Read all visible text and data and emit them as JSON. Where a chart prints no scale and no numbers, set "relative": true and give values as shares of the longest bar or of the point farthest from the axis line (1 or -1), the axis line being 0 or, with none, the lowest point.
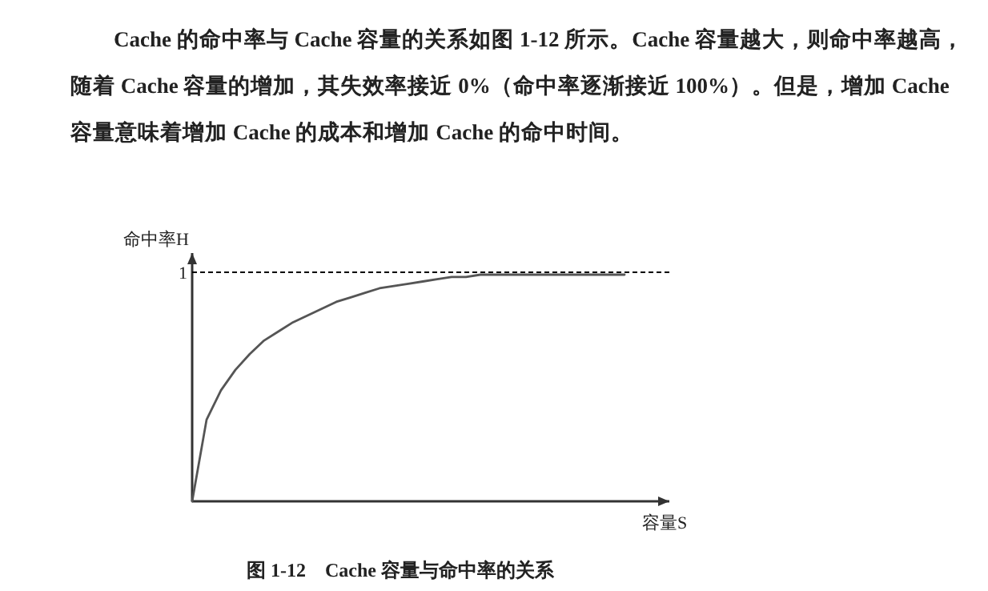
{
  "chart_data": {
    "type": "line",
    "title": "图 1-12　Cache 容量与命中率的关系",
    "xlabel": "容量S",
    "ylabel": "命中率H",
    "annotations": [
      "Cache 的命中率与 Cache 容量的关系如图 1-12 所示。Cache 容量越大，则命中率越高，随着 Cache 容量的增加，其失效率接近 0%（命中率逐渐接近 100%）。但是，增加 Cache 容量意味着增加 Cache 的成本和增加 Cache 的命中时间。"
    ],
    "relative": true,
    "color": "#555555",
    "categories": [
      null,
      null,
      null,
      null,
      null,
      null,
      null,
      null,
      null,
      null,
      null,
      null,
      null,
      null,
      null,
      null,
      null,
      null,
      null,
      null,
      null,
      null,
      null,
      null,
      null,
      null,
      null,
      null,
      null,
      null,
      null
    ],
    "values": [
      0,
      0.36,
      0.49,
      0.58,
      0.65,
      0.71,
      0.75,
      0.79,
      0.82,
      0.85,
      0.88,
      0.9,
      0.92,
      0.94,
      0.95,
      0.96,
      0.97,
      0.98,
      0.99,
      0.99,
      1,
      1,
      1,
      1,
      1,
      1,
      1,
      1,
      1,
      1,
      1
    ],
    "ref_lines": [
      {
        "axis": "y",
        "value": 1,
        "label": "1",
        "color": "#000000",
        "line_style": "dashed"
      }
    ]
  }
}
